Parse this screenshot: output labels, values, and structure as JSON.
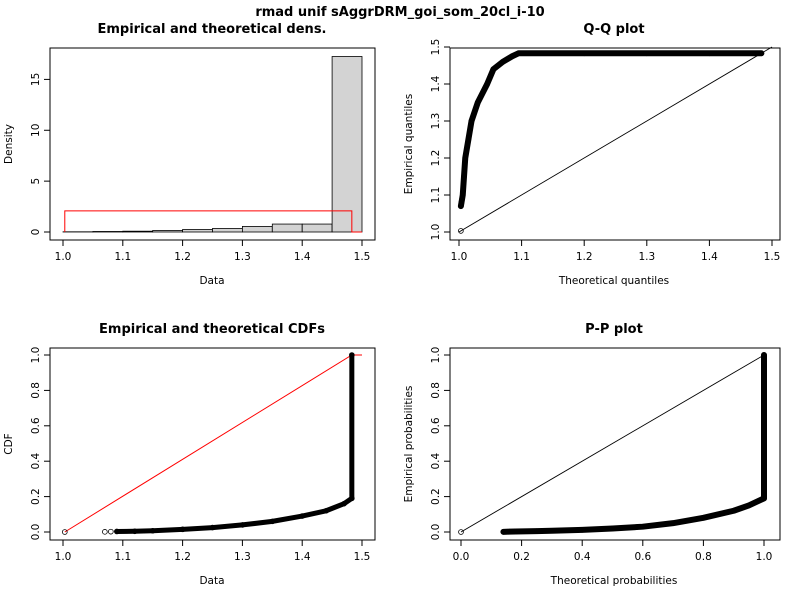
{
  "figure_title": "rmad unif sAggrDRM_goi_som_20cl_i-10",
  "chart_data": [
    {
      "type": "bar",
      "title": "Empirical and theoretical dens.",
      "xlabel": "Data",
      "ylabel": "Density",
      "xlim": [
        1.0,
        1.5
      ],
      "ylim": [
        0,
        17.3
      ],
      "xticks": [
        "1.0",
        "1.1",
        "1.2",
        "1.3",
        "1.4",
        "1.5"
      ],
      "yticks": [
        "0",
        "5",
        "10",
        "15"
      ],
      "bins": [
        [
          1.0,
          1.05
        ],
        [
          1.05,
          1.1
        ],
        [
          1.1,
          1.15
        ],
        [
          1.15,
          1.2
        ],
        [
          1.2,
          1.25
        ],
        [
          1.25,
          1.3
        ],
        [
          1.3,
          1.35
        ],
        [
          1.35,
          1.4
        ],
        [
          1.4,
          1.45
        ],
        [
          1.45,
          1.5
        ]
      ],
      "values": [
        0.02,
        0.05,
        0.08,
        0.15,
        0.25,
        0.35,
        0.55,
        0.78,
        0.78,
        17.25
      ],
      "theoretical_density": {
        "min": 1.003,
        "max": 1.483,
        "value": 2.08
      },
      "colors": {
        "bars": "#d3d3d3",
        "theoretical": "#ff0000"
      }
    },
    {
      "type": "scatter",
      "title": "Q-Q plot",
      "xlabel": "Theoretical quantiles",
      "ylabel": "Empirical quantiles",
      "xlim": [
        1.0,
        1.5
      ],
      "ylim": [
        1.0,
        1.5
      ],
      "xticks": [
        "1.0",
        "1.1",
        "1.2",
        "1.3",
        "1.4",
        "1.5"
      ],
      "yticks": [
        "1.0",
        "1.1",
        "1.2",
        "1.3",
        "1.4",
        "1.5"
      ],
      "points": [
        [
          1.003,
          1.003
        ],
        [
          1.003,
          1.07
        ],
        [
          1.004,
          1.08
        ],
        [
          1.005,
          1.09
        ],
        [
          1.006,
          1.1
        ],
        [
          1.008,
          1.15
        ],
        [
          1.01,
          1.2
        ],
        [
          1.015,
          1.25
        ],
        [
          1.02,
          1.3
        ],
        [
          1.03,
          1.35
        ],
        [
          1.045,
          1.4
        ],
        [
          1.055,
          1.44
        ],
        [
          1.07,
          1.46
        ],
        [
          1.085,
          1.475
        ],
        [
          1.095,
          1.483
        ],
        [
          1.2,
          1.483
        ],
        [
          1.3,
          1.483
        ],
        [
          1.4,
          1.483
        ],
        [
          1.483,
          1.483
        ]
      ],
      "reference_line": [
        [
          1.0,
          1.0
        ],
        [
          1.5,
          1.5
        ]
      ]
    },
    {
      "type": "line",
      "title": "Empirical and theoretical CDFs",
      "xlabel": "Data",
      "ylabel": "CDF",
      "xlim": [
        1.0,
        1.5
      ],
      "ylim": [
        0,
        1.0
      ],
      "xticks": [
        "1.0",
        "1.1",
        "1.2",
        "1.3",
        "1.4",
        "1.5"
      ],
      "yticks": [
        "0.0",
        "0.2",
        "0.4",
        "0.6",
        "0.8",
        "1.0"
      ],
      "empirical": [
        [
          1.003,
          0.0
        ],
        [
          1.07,
          0.001
        ],
        [
          1.08,
          0.002
        ],
        [
          1.09,
          0.003
        ],
        [
          1.12,
          0.004
        ],
        [
          1.15,
          0.007
        ],
        [
          1.2,
          0.015
        ],
        [
          1.25,
          0.025
        ],
        [
          1.3,
          0.04
        ],
        [
          1.35,
          0.06
        ],
        [
          1.4,
          0.09
        ],
        [
          1.44,
          0.12
        ],
        [
          1.47,
          0.16
        ],
        [
          1.483,
          0.19
        ],
        [
          1.483,
          1.0
        ]
      ],
      "theoretical": [
        [
          1.003,
          0.0
        ],
        [
          1.483,
          1.0
        ],
        [
          1.5,
          1.0
        ]
      ],
      "colors": {
        "theoretical": "#ff0000"
      }
    },
    {
      "type": "scatter",
      "title": "P-P plot",
      "xlabel": "Theoretical probabilities",
      "ylabel": "Empirical probabilities",
      "xlim": [
        0,
        1.0
      ],
      "ylim": [
        0,
        1.0
      ],
      "xticks": [
        "0.0",
        "0.2",
        "0.4",
        "0.6",
        "0.8",
        "1.0"
      ],
      "yticks": [
        "0.0",
        "0.2",
        "0.4",
        "0.6",
        "0.8",
        "1.0"
      ],
      "points": [
        [
          0.0,
          0.0
        ],
        [
          0.14,
          0.001
        ],
        [
          0.16,
          0.002
        ],
        [
          0.18,
          0.003
        ],
        [
          0.25,
          0.005
        ],
        [
          0.3,
          0.007
        ],
        [
          0.4,
          0.012
        ],
        [
          0.5,
          0.02
        ],
        [
          0.6,
          0.03
        ],
        [
          0.7,
          0.05
        ],
        [
          0.8,
          0.08
        ],
        [
          0.9,
          0.12
        ],
        [
          0.95,
          0.15
        ],
        [
          1.0,
          0.19
        ],
        [
          1.0,
          1.0
        ]
      ],
      "reference_line": [
        [
          0,
          0
        ],
        [
          1,
          1
        ]
      ]
    }
  ]
}
